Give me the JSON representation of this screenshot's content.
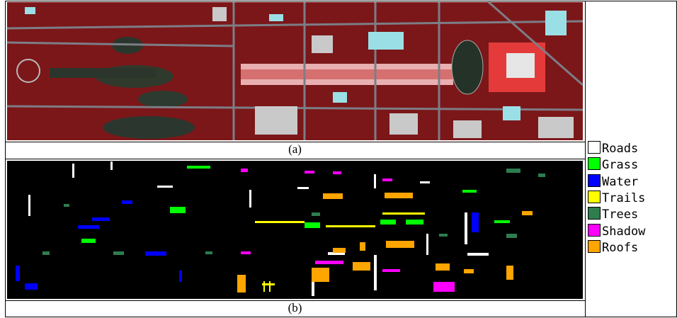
{
  "panels": [
    {
      "caption": "(a)"
    },
    {
      "caption": "(b)"
    }
  ],
  "legend": [
    {
      "label": "Roads",
      "color": "#ffffff"
    },
    {
      "label": "Grass",
      "color": "#00ff00"
    },
    {
      "label": "Water",
      "color": "#0000ff"
    },
    {
      "label": "Trails",
      "color": "#ffff00"
    },
    {
      "label": "Trees",
      "color": "#2e7d4f"
    },
    {
      "label": "Shadow",
      "color": "#ff00ff"
    },
    {
      "label": "Roofs",
      "color": "#ffa500"
    }
  ]
}
